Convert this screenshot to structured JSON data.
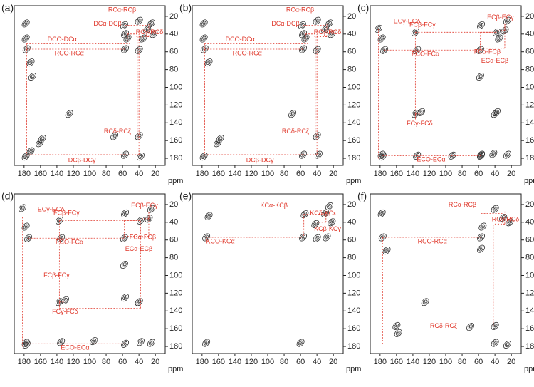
{
  "chart_data": [
    {
      "type": "scatter",
      "panel": "(a)",
      "xlabel": "ppm",
      "xlim": [
        192,
        8
      ],
      "ylim": [
        188,
        8
      ],
      "xticks": [
        180,
        160,
        140,
        120,
        100,
        80,
        60,
        40,
        20
      ],
      "yticks": [
        20,
        40,
        60,
        80,
        100,
        120,
        140,
        160,
        180
      ],
      "color": "#333333",
      "annotation_color": "#e0382b",
      "x": [
        178,
        178,
        177,
        172,
        170,
        158,
        161,
        178,
        172,
        57,
        54,
        58,
        40,
        30,
        22,
        40,
        57,
        70,
        40,
        38,
        57,
        125,
        35,
        25
      ],
      "y": [
        28,
        45,
        57,
        72,
        88,
        158,
        163,
        178,
        172,
        57,
        45,
        30,
        25,
        35,
        40,
        58,
        40,
        155,
        155,
        178,
        176,
        130,
        45,
        28
      ],
      "annotations": [
        {
          "text": "RCα-RCβ",
          "x": 57,
          "y": 30
        },
        {
          "text": "DCα-DCβ",
          "x": 54,
          "y": 40
        },
        {
          "text": "RCγ-RCδ",
          "x": 28,
          "y": 43
        },
        {
          "text": "DCO-DCα",
          "x": 177,
          "y": 51
        },
        {
          "text": "RCO-RCα",
          "x": 177,
          "y": 57
        },
        {
          "text": "RCδ-RCζ",
          "x": 42,
          "y": 157
        },
        {
          "text": "DCβ-DCγ",
          "x": 40,
          "y": 176
        }
      ]
    },
    {
      "type": "scatter",
      "panel": "(b)",
      "xlabel": "ppm",
      "xlim": [
        192,
        8
      ],
      "ylim": [
        188,
        8
      ],
      "xticks": [
        180,
        160,
        140,
        120,
        100,
        80,
        60,
        40,
        20
      ],
      "yticks": [
        20,
        40,
        60,
        80,
        100,
        120,
        140,
        160,
        180
      ],
      "color": "#333333",
      "annotation_color": "#e0382b",
      "x": [
        178,
        178,
        177,
        172,
        158,
        161,
        178,
        57,
        54,
        58,
        40,
        30,
        22,
        40,
        57,
        40,
        38,
        57,
        70,
        25
      ],
      "y": [
        28,
        45,
        57,
        72,
        158,
        163,
        178,
        57,
        45,
        30,
        25,
        35,
        40,
        58,
        40,
        155,
        176,
        176,
        130,
        28
      ],
      "annotations": [
        {
          "text": "RCα-RCβ",
          "x": 57,
          "y": 30
        },
        {
          "text": "DCα-DCβ",
          "x": 54,
          "y": 40
        },
        {
          "text": "RCγ-RCδ",
          "x": 28,
          "y": 43
        },
        {
          "text": "DCO-DCα",
          "x": 177,
          "y": 51
        },
        {
          "text": "RCO-RCα",
          "x": 177,
          "y": 57
        },
        {
          "text": "RCδ-RCζ",
          "x": 42,
          "y": 157
        },
        {
          "text": "DCβ-DCγ",
          "x": 40,
          "y": 176
        }
      ]
    },
    {
      "type": "scatter",
      "panel": "(c)",
      "xlabel": "ppm",
      "xlim": [
        192,
        8
      ],
      "ylim": [
        188,
        8
      ],
      "xticks": [
        180,
        160,
        140,
        120,
        100,
        80,
        60,
        40,
        20
      ],
      "yticks": [
        20,
        40,
        60,
        80,
        100,
        120,
        140,
        160,
        180
      ],
      "color": "#333333",
      "annotation_color": "#e0382b",
      "x": [
        182,
        178,
        175,
        177,
        137,
        135,
        137,
        130,
        58,
        57,
        38,
        28,
        25,
        35,
        58,
        40,
        135,
        57,
        178,
        92,
        57,
        42,
        25,
        38
      ],
      "y": [
        34,
        45,
        58,
        178,
        38,
        58,
        130,
        128,
        58,
        30,
        38,
        36,
        25,
        45,
        88,
        130,
        177,
        177,
        176,
        177,
        176,
        175,
        176,
        128
      ],
      "annotations": [
        {
          "text": "ECβ-ECγ",
          "x": 28,
          "y": 36
        },
        {
          "text": "ECγ-ECδ",
          "x": 182,
          "y": 34
        },
        {
          "text": "FCβ-FCγ",
          "x": 137,
          "y": 38
        },
        {
          "text": "FCO-FCα",
          "x": 175,
          "y": 58
        },
        {
          "text": "FCα-FCβ",
          "x": 58,
          "y": 38
        },
        {
          "text": "ECα-ECβ",
          "x": 28,
          "y": 56
        },
        {
          "text": "FCγ-FCδ",
          "x": 137,
          "y": 130
        },
        {
          "text": "ECO-ECα",
          "x": 57,
          "y": 177
        }
      ]
    },
    {
      "type": "scatter",
      "panel": "(d)",
      "xlabel": "ppm",
      "xlim": [
        192,
        8
      ],
      "ylim": [
        188,
        8
      ],
      "xticks": [
        180,
        160,
        140,
        120,
        100,
        80,
        60,
        40,
        20
      ],
      "yticks": [
        20,
        40,
        60,
        80,
        100,
        120,
        140,
        160,
        180
      ],
      "color": "#333333",
      "annotation_color": "#e0382b",
      "x": [
        182,
        178,
        175,
        177,
        137,
        135,
        137,
        130,
        58,
        57,
        38,
        28,
        25,
        58,
        40,
        135,
        57,
        178,
        95,
        57,
        38,
        40,
        25
      ],
      "y": [
        24,
        45,
        58,
        178,
        38,
        58,
        130,
        128,
        58,
        30,
        38,
        36,
        25,
        88,
        130,
        175,
        177,
        176,
        174,
        125,
        175,
        130,
        176
      ],
      "annotations": [
        {
          "text": "ECβ-ECγ",
          "x": 28,
          "y": 36
        },
        {
          "text": "ECγ-ECδ",
          "x": 182,
          "y": 34
        },
        {
          "text": "FCβ-FCγ",
          "x": 137,
          "y": 38
        },
        {
          "text": "FCα-FCβ",
          "x": 58,
          "y": 38
        },
        {
          "text": "FCO-FCα",
          "x": 175,
          "y": 58
        },
        {
          "text": "ECα-ECβ",
          "x": 28,
          "y": 56
        },
        {
          "text": "FCβ-FCγ",
          "x": 38,
          "y": 137
        },
        {
          "text": "FCγ-FCδ",
          "x": 137,
          "y": 130
        },
        {
          "text": "ECO-ECα",
          "x": 57,
          "y": 177
        }
      ]
    },
    {
      "type": "scatter",
      "panel": "(e)",
      "xlabel": "ppm",
      "xlim": [
        192,
        8
      ],
      "ylim": [
        188,
        8
      ],
      "xticks": [
        180,
        160,
        140,
        120,
        100,
        80,
        60,
        40,
        20
      ],
      "yticks": [
        20,
        40,
        60,
        80,
        100,
        120,
        140,
        160,
        180
      ],
      "color": "#333333",
      "annotation_color": "#e0382b",
      "x": [
        175,
        172,
        57,
        55,
        42,
        40,
        30,
        25,
        22,
        28,
        60,
        175
      ],
      "y": [
        57,
        33,
        57,
        31,
        42,
        58,
        30,
        22,
        40,
        57,
        176,
        176
      ],
      "annotations": [
        {
          "text": "KCδ-KCε",
          "x": 29,
          "y": 40
        },
        {
          "text": "KCα-KCβ",
          "x": 56,
          "y": 31
        },
        {
          "text": "KCβ-KCγ",
          "x": 24,
          "y": 32
        },
        {
          "text": "KCO-KCα",
          "x": 175,
          "y": 57
        }
      ]
    },
    {
      "type": "scatter",
      "panel": "(f)",
      "xlabel": "ppm",
      "xlim": [
        192,
        8
      ],
      "ylim": [
        188,
        8
      ],
      "xticks": [
        180,
        160,
        140,
        120,
        100,
        80,
        60,
        40,
        20
      ],
      "yticks": [
        20,
        40,
        60,
        80,
        100,
        120,
        140,
        160,
        180
      ],
      "color": "#333333",
      "annotation_color": "#e0382b",
      "x": [
        178,
        177,
        172,
        160,
        158,
        57,
        55,
        40,
        30,
        22,
        70,
        40,
        57,
        40,
        125,
        25
      ],
      "y": [
        30,
        57,
        72,
        157,
        165,
        57,
        45,
        25,
        35,
        40,
        158,
        157,
        70,
        176,
        130,
        178
      ],
      "annotations": [
        {
          "text": "RCα-RCβ",
          "x": 57,
          "y": 30
        },
        {
          "text": "RCγ-RCδ",
          "x": 28,
          "y": 42
        },
        {
          "text": "RCO-RCα",
          "x": 177,
          "y": 57
        },
        {
          "text": "RCδ-RCζ",
          "x": 42,
          "y": 157
        }
      ]
    }
  ]
}
